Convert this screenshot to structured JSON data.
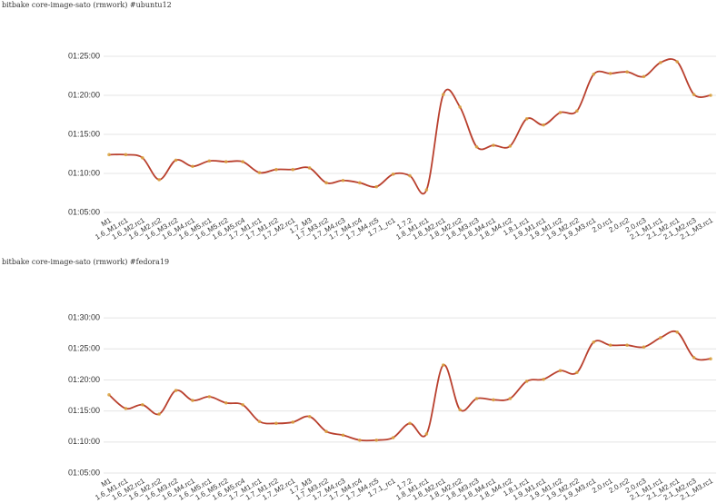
{
  "chart_data": [
    {
      "type": "line",
      "title": "bitbake core-image-sato (rmwork) #ubuntu12",
      "color": "#b9402e",
      "categories": [
        "M1",
        "1.6_M1.rc1",
        "1.6_M2.rc1",
        "1.6_M2.rc2",
        "1.6_M3.rc2",
        "1.6_M4.rc1",
        "1.6_M5.rc1",
        "1.6_M5.rc2",
        "1.6_M5.rc4",
        "1.7_M1.rc1",
        "1.7_M1.rc2",
        "1.7_M2.rc1",
        "1.7_M3",
        "1.7_M3.rc2",
        "1.7_M4.rc3",
        "1.7_M4.rc4",
        "1.7_M4.rc5",
        "1.7.1_rc1",
        "1.7.2",
        "1.8_M1.rc1",
        "1.8_M2.rc1",
        "1.8_M2.rc2",
        "1.8_M3.rc3",
        "1.8_M4.rc1",
        "1.8_M4.rc2",
        "1.8.1.rc1",
        "1.9_M1.rc1",
        "1.9_M1.rc2",
        "1.9_M2.rc2",
        "1.9_M3.rc1",
        "2.0.rc1",
        "2.0.rc2",
        "2.0.rc3",
        "2.1_M1.rc1",
        "2.1_M2.rc1",
        "2.1_M2.rc3",
        "2.1_M3.rc1"
      ],
      "values": [
        72.4,
        72.4,
        72.0,
        69.2,
        71.7,
        70.9,
        71.6,
        71.5,
        71.5,
        70.1,
        70.5,
        70.5,
        70.7,
        68.8,
        69.1,
        68.8,
        68.3,
        69.9,
        69.7,
        67.9,
        80.1,
        78.5,
        73.4,
        73.6,
        73.5,
        77.0,
        76.2,
        77.8,
        78.0,
        82.7,
        82.8,
        83.0,
        82.4,
        84.2,
        84.3,
        80.1,
        80.0
      ],
      "ylim": [
        65,
        90
      ],
      "yticks": [
        {
          "value": 65,
          "label": "01:05:00"
        },
        {
          "value": 70,
          "label": "01:10:00"
        },
        {
          "value": 75,
          "label": "01:15:00"
        },
        {
          "value": 80,
          "label": "01:20:00"
        },
        {
          "value": 85,
          "label": "01:25:00"
        }
      ],
      "grid": true
    },
    {
      "type": "line",
      "title": "bitbake core-image-sato (rmwork) #fedora19",
      "color": "#b9402e",
      "categories": [
        "M1",
        "1.6_M1.rc1",
        "1.6_M2.rc1",
        "1.6_M2.rc2",
        "1.6_M3.rc2",
        "1.6_M4.rc1",
        "1.6_M5.rc1",
        "1.6_M5.rc2",
        "1.6_M5.rc4",
        "1.7_M1.rc1",
        "1.7_M1.rc2",
        "1.7_M2.rc1",
        "1.7_M3",
        "1.7_M3.rc2",
        "1.7_M4.rc3",
        "1.7_M4.rc4",
        "1.7_M4.rc5",
        "1.7.1_rc1",
        "1.7.2",
        "1.8_M1.rc1",
        "1.8_M2.rc1",
        "1.8_M2.rc2",
        "1.8_M3.rc3",
        "1.8_M4.rc1",
        "1.8_M4.rc2",
        "1.8.1.rc1",
        "1.9_M1.rc1",
        "1.9_M1.rc2",
        "1.9_M2.rc2",
        "1.9_M3.rc1",
        "2.0.rc1",
        "2.0.rc2",
        "2.0.rc3",
        "2.1_M1.rc1",
        "2.1_M2.rc1",
        "2.1_M2.rc3",
        "2.1_M3.rc1"
      ],
      "values": [
        77.6,
        75.4,
        76.0,
        74.5,
        78.3,
        76.7,
        77.3,
        76.3,
        76.0,
        73.3,
        73.0,
        73.2,
        74.1,
        71.7,
        71.1,
        70.3,
        70.3,
        70.7,
        73.0,
        71.3,
        82.4,
        75.2,
        77.0,
        76.8,
        77.0,
        79.8,
        80.1,
        81.5,
        81.2,
        86.1,
        85.6,
        85.6,
        85.3,
        86.8,
        87.7,
        83.6,
        83.4
      ],
      "ylim": [
        65,
        92.5
      ],
      "yticks": [
        {
          "value": 65,
          "label": "01:05:00"
        },
        {
          "value": 70,
          "label": "01:10:00"
        },
        {
          "value": 75,
          "label": "01:15:00"
        },
        {
          "value": 80,
          "label": "01:20:00"
        },
        {
          "value": 85,
          "label": "01:25:00"
        },
        {
          "value": 90,
          "label": "01:30:00"
        }
      ],
      "grid": true
    }
  ]
}
